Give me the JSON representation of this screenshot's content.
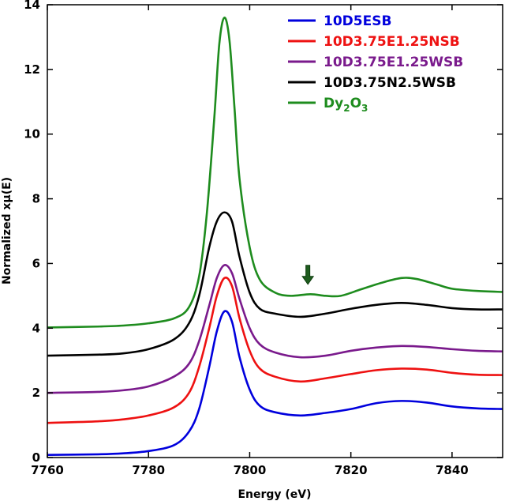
{
  "chart_data": {
    "type": "line",
    "title": "",
    "xlabel": "Energy (eV)",
    "ylabel": "Normalized xμ(E)",
    "xlim": [
      7760,
      7850
    ],
    "ylim": [
      0,
      14
    ],
    "xticks": [
      7760,
      7780,
      7800,
      7820,
      7840
    ],
    "yticks": [
      0,
      2,
      4,
      6,
      8,
      10,
      12,
      14
    ],
    "grid": false,
    "legend_position": "top-right",
    "annotations": [
      {
        "type": "arrow",
        "x": 7811.5,
        "y": 5.65,
        "color": "#1e5c1e",
        "direction": "down"
      }
    ],
    "series": [
      {
        "name": "10D5ESB",
        "color": "#0000dd",
        "points": [
          [
            7760,
            0.08
          ],
          [
            7770,
            0.1
          ],
          [
            7775,
            0.13
          ],
          [
            7780,
            0.2
          ],
          [
            7785,
            0.38
          ],
          [
            7788,
            0.8
          ],
          [
            7790,
            1.5
          ],
          [
            7792,
            2.8
          ],
          [
            7793.5,
            3.9
          ],
          [
            7795,
            4.52
          ],
          [
            7796.5,
            4.2
          ],
          [
            7798,
            3.1
          ],
          [
            7800,
            2.1
          ],
          [
            7802,
            1.6
          ],
          [
            7805,
            1.4
          ],
          [
            7810,
            1.3
          ],
          [
            7815,
            1.38
          ],
          [
            7820,
            1.5
          ],
          [
            7825,
            1.68
          ],
          [
            7830,
            1.75
          ],
          [
            7835,
            1.7
          ],
          [
            7840,
            1.58
          ],
          [
            7845,
            1.52
          ],
          [
            7850,
            1.5
          ]
        ]
      },
      {
        "name": "10D3.75E1.25NSB",
        "color": "#ee1111",
        "points": [
          [
            7760,
            1.07
          ],
          [
            7770,
            1.12
          ],
          [
            7775,
            1.18
          ],
          [
            7780,
            1.3
          ],
          [
            7785,
            1.55
          ],
          [
            7788,
            2.0
          ],
          [
            7790,
            2.8
          ],
          [
            7792,
            4.0
          ],
          [
            7793.5,
            5.0
          ],
          [
            7795,
            5.55
          ],
          [
            7796.5,
            5.3
          ],
          [
            7798,
            4.3
          ],
          [
            7800,
            3.3
          ],
          [
            7802,
            2.75
          ],
          [
            7805,
            2.5
          ],
          [
            7810,
            2.35
          ],
          [
            7815,
            2.45
          ],
          [
            7820,
            2.58
          ],
          [
            7825,
            2.7
          ],
          [
            7830,
            2.75
          ],
          [
            7835,
            2.72
          ],
          [
            7840,
            2.62
          ],
          [
            7845,
            2.56
          ],
          [
            7850,
            2.55
          ]
        ]
      },
      {
        "name": "10D3.75E1.25WSB",
        "color": "#7a1a8c",
        "points": [
          [
            7760,
            2.0
          ],
          [
            7770,
            2.03
          ],
          [
            7775,
            2.08
          ],
          [
            7780,
            2.2
          ],
          [
            7785,
            2.5
          ],
          [
            7788,
            2.9
          ],
          [
            7790,
            3.6
          ],
          [
            7792,
            4.7
          ],
          [
            7793.5,
            5.55
          ],
          [
            7795,
            5.95
          ],
          [
            7796.5,
            5.7
          ],
          [
            7798,
            4.9
          ],
          [
            7800,
            4.0
          ],
          [
            7802,
            3.5
          ],
          [
            7805,
            3.25
          ],
          [
            7810,
            3.1
          ],
          [
            7815,
            3.15
          ],
          [
            7820,
            3.3
          ],
          [
            7825,
            3.4
          ],
          [
            7830,
            3.45
          ],
          [
            7835,
            3.42
          ],
          [
            7840,
            3.35
          ],
          [
            7845,
            3.3
          ],
          [
            7850,
            3.28
          ]
        ]
      },
      {
        "name": "10D3.75N2.5WSB",
        "color": "#000000",
        "points": [
          [
            7760,
            3.15
          ],
          [
            7770,
            3.18
          ],
          [
            7775,
            3.22
          ],
          [
            7780,
            3.35
          ],
          [
            7785,
            3.65
          ],
          [
            7788,
            4.15
          ],
          [
            7790,
            5.0
          ],
          [
            7792,
            6.5
          ],
          [
            7793.5,
            7.3
          ],
          [
            7795,
            7.58
          ],
          [
            7796.5,
            7.3
          ],
          [
            7798,
            6.2
          ],
          [
            7800,
            5.1
          ],
          [
            7802,
            4.6
          ],
          [
            7805,
            4.45
          ],
          [
            7810,
            4.35
          ],
          [
            7815,
            4.45
          ],
          [
            7820,
            4.6
          ],
          [
            7825,
            4.72
          ],
          [
            7830,
            4.78
          ],
          [
            7835,
            4.72
          ],
          [
            7840,
            4.62
          ],
          [
            7845,
            4.58
          ],
          [
            7850,
            4.58
          ]
        ]
      },
      {
        "name": "Dy2O3",
        "color": "#1e8c1e",
        "points": [
          [
            7760,
            4.02
          ],
          [
            7770,
            4.05
          ],
          [
            7775,
            4.08
          ],
          [
            7780,
            4.15
          ],
          [
            7785,
            4.3
          ],
          [
            7788,
            4.65
          ],
          [
            7790,
            5.6
          ],
          [
            7791.5,
            7.5
          ],
          [
            7793,
            10.5
          ],
          [
            7794,
            12.8
          ],
          [
            7795,
            13.6
          ],
          [
            7796,
            12.9
          ],
          [
            7797,
            10.8
          ],
          [
            7798,
            8.6
          ],
          [
            7800,
            6.5
          ],
          [
            7802,
            5.5
          ],
          [
            7805,
            5.1
          ],
          [
            7808,
            5.0
          ],
          [
            7812,
            5.05
          ],
          [
            7815,
            5.0
          ],
          [
            7818,
            5.0
          ],
          [
            7822,
            5.2
          ],
          [
            7826,
            5.4
          ],
          [
            7830,
            5.55
          ],
          [
            7833,
            5.52
          ],
          [
            7837,
            5.35
          ],
          [
            7840,
            5.22
          ],
          [
            7845,
            5.15
          ],
          [
            7850,
            5.12
          ]
        ]
      }
    ]
  }
}
